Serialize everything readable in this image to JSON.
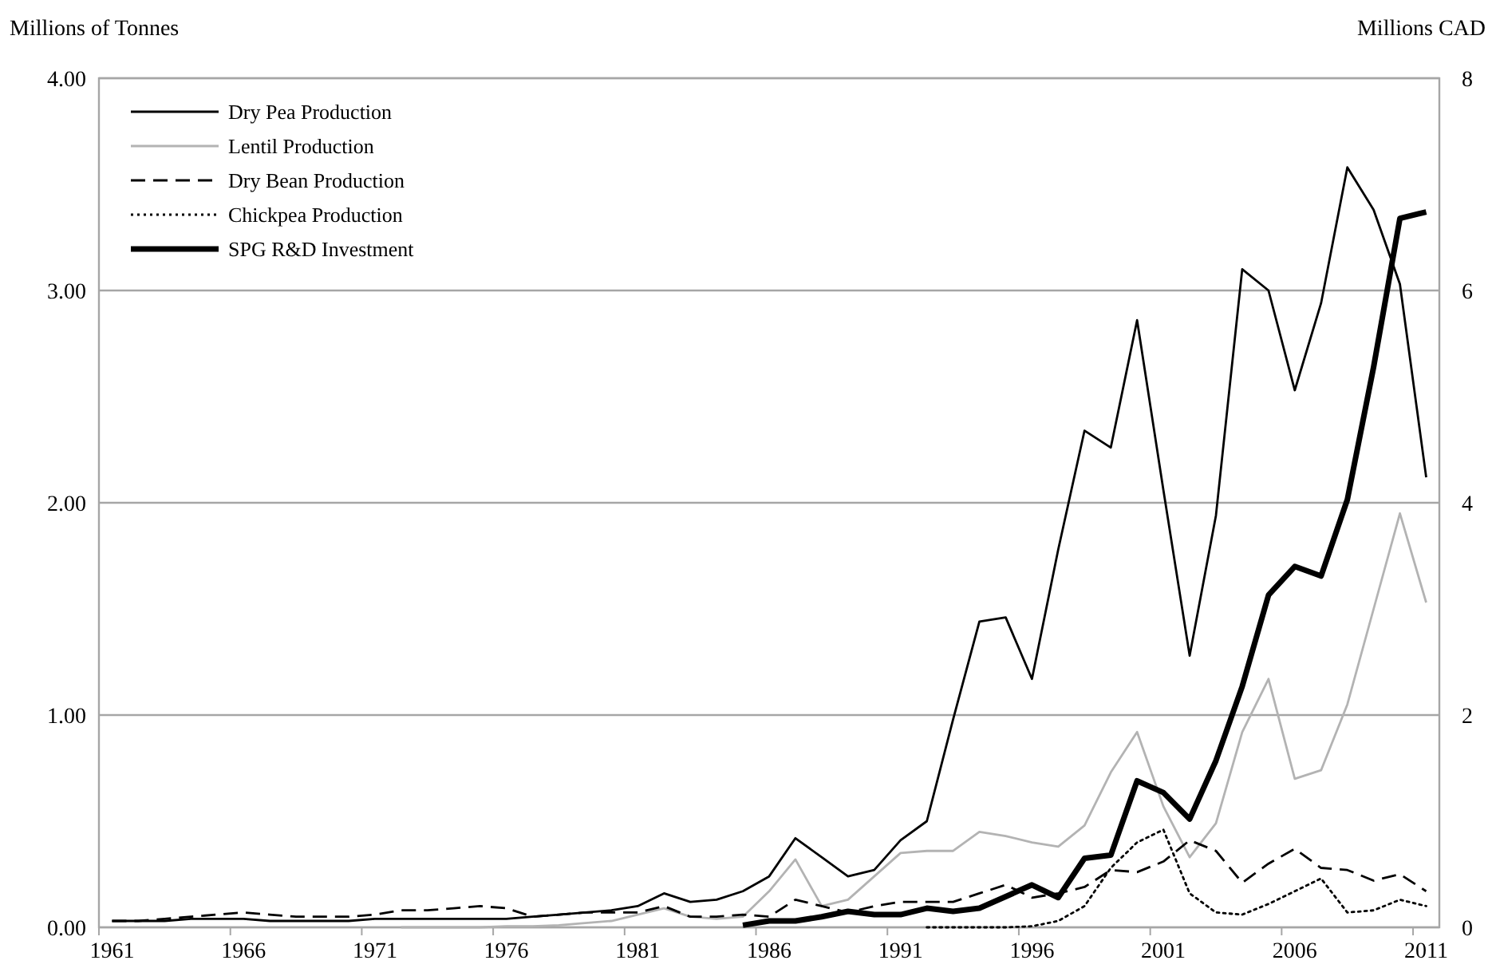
{
  "chart_data": {
    "type": "line",
    "ylabel": "Millions of Tonnes",
    "y2label": "Millions CAD",
    "categories": [
      "1961",
      null,
      null,
      null,
      null,
      "1966",
      null,
      null,
      null,
      null,
      "1971",
      null,
      null,
      null,
      null,
      "1976",
      null,
      null,
      null,
      null,
      "1981",
      null,
      null,
      null,
      null,
      "1986",
      null,
      null,
      null,
      null,
      "1991",
      null,
      null,
      null,
      null,
      "1996",
      null,
      null,
      null,
      null,
      "2001",
      null,
      null,
      null,
      null,
      "2006",
      null,
      null,
      null,
      null,
      "2011"
    ],
    "series": [
      {
        "name": "Dry Pea Production",
        "color": "#000000",
        "line_style": "solid",
        "values": [
          0.03,
          0.03,
          0.03,
          0.04,
          0.04,
          0.04,
          0.03,
          0.03,
          0.03,
          0.03,
          0.04,
          0.04,
          0.04,
          0.04,
          0.04,
          0.04,
          0.05,
          0.06,
          0.07,
          0.08,
          0.1,
          0.16,
          0.12,
          0.13,
          0.17,
          0.24,
          0.42,
          0.33,
          0.24,
          0.27,
          0.41,
          0.5,
          0.98,
          1.44,
          1.46,
          1.17,
          1.78,
          2.34,
          2.26,
          2.86,
          2.06,
          1.28,
          1.94,
          3.1,
          3.0,
          2.53,
          2.94,
          3.58,
          3.38,
          3.03,
          2.12
        ]
      },
      {
        "name": "Lentil Production",
        "color": "#b3b3b3",
        "line_style": "solid",
        "values": [
          null,
          null,
          null,
          null,
          null,
          null,
          null,
          null,
          null,
          null,
          null,
          0,
          0,
          0,
          0,
          0.005,
          0.005,
          0.01,
          0.02,
          0.03,
          0.06,
          0.09,
          0.05,
          0.04,
          0.05,
          0.17,
          0.32,
          0.1,
          0.13,
          0.24,
          0.35,
          0.36,
          0.36,
          0.45,
          0.43,
          0.4,
          0.38,
          0.48,
          0.73,
          0.92,
          0.57,
          0.33,
          0.49,
          0.92,
          1.17,
          0.7,
          0.74,
          1.05,
          1.5,
          1.95,
          1.53
        ]
      },
      {
        "name": "Dry Bean Production",
        "color": "#000000",
        "line_style": "dashed",
        "values": [
          0.03,
          0.03,
          0.04,
          0.05,
          0.06,
          0.07,
          0.06,
          0.05,
          0.05,
          0.05,
          0.06,
          0.08,
          0.08,
          0.09,
          0.1,
          0.09,
          0.05,
          0.06,
          0.07,
          0.07,
          0.07,
          0.1,
          0.05,
          0.05,
          0.06,
          0.05,
          0.13,
          0.1,
          0.07,
          0.1,
          0.12,
          0.12,
          0.12,
          0.16,
          0.2,
          0.14,
          0.16,
          0.19,
          0.27,
          0.26,
          0.31,
          0.41,
          0.36,
          0.21,
          0.3,
          0.37,
          0.28,
          0.27,
          0.22,
          0.25,
          0.17
        ]
      },
      {
        "name": "Chickpea Production",
        "color": "#000000",
        "line_style": "dotted",
        "values": [
          null,
          null,
          null,
          null,
          null,
          null,
          null,
          null,
          null,
          null,
          null,
          null,
          null,
          null,
          null,
          null,
          null,
          null,
          null,
          null,
          null,
          null,
          null,
          null,
          null,
          null,
          null,
          null,
          null,
          null,
          null,
          0,
          0,
          0,
          0,
          0.005,
          0.03,
          0.1,
          0.28,
          0.4,
          0.46,
          0.16,
          0.07,
          0.06,
          0.11,
          0.17,
          0.23,
          0.07,
          0.08,
          0.13,
          0.1
        ]
      },
      {
        "name": "SPG R&D Investment",
        "color": "#000000",
        "line_style": "solid",
        "axis": "y2",
        "values": [
          null,
          null,
          null,
          null,
          null,
          null,
          null,
          null,
          null,
          null,
          null,
          null,
          null,
          null,
          null,
          null,
          null,
          null,
          null,
          null,
          null,
          null,
          null,
          null,
          0.02,
          0.06,
          0.06,
          0.1,
          0.15,
          0.12,
          0.12,
          0.18,
          0.15,
          0.18,
          0.29,
          0.4,
          0.28,
          0.65,
          0.68,
          1.38,
          1.27,
          1.02,
          1.57,
          2.27,
          3.13,
          3.4,
          3.31,
          4.03,
          5.28,
          6.68,
          6.74
        ]
      }
    ],
    "ylim": [
      0,
      4
    ],
    "yticks": [
      {
        "value": 0,
        "label": "0.00"
      },
      {
        "value": 1,
        "label": "1.00"
      },
      {
        "value": 2,
        "label": "2.00"
      },
      {
        "value": 3,
        "label": "3.00"
      },
      {
        "value": 4,
        "label": "4.00"
      }
    ],
    "y2lim": [
      0,
      8
    ],
    "y2ticks": [
      0,
      2,
      4,
      6,
      8
    ],
    "grid": "y",
    "legend": "top left",
    "marker": "none"
  }
}
